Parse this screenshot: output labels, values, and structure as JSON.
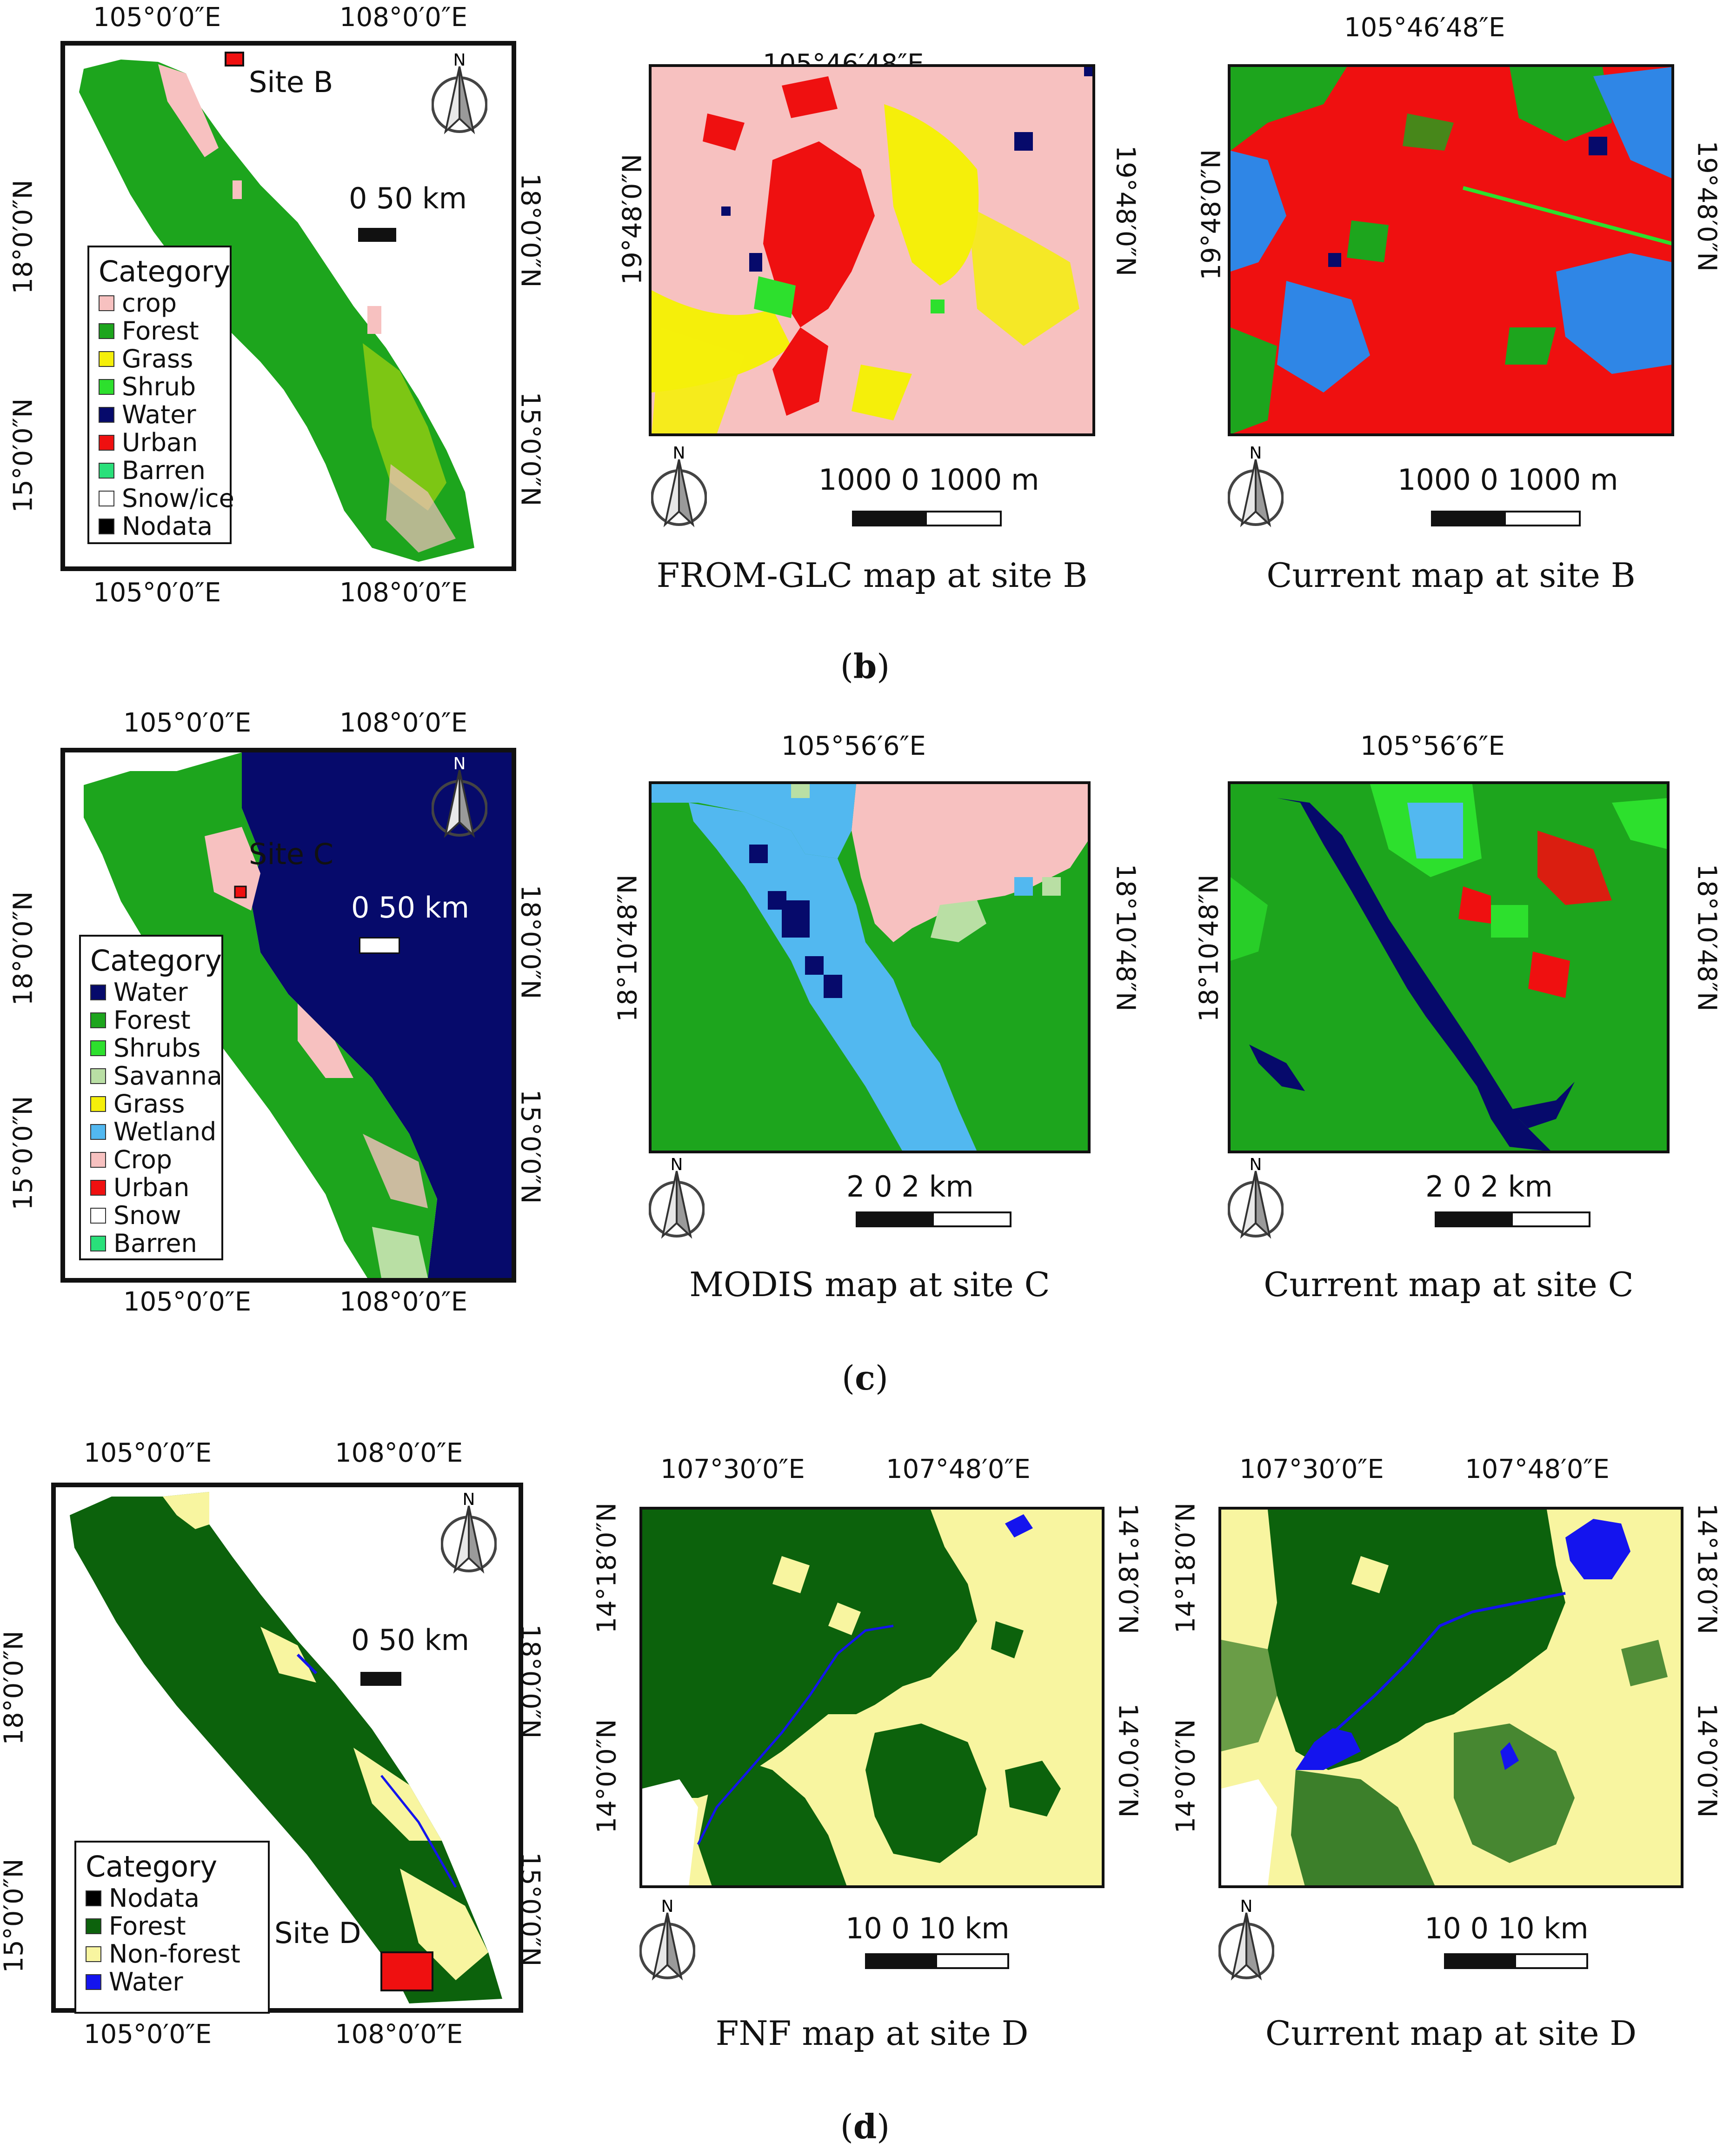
{
  "colors": {
    "crop": "#f7c1c0",
    "forest": "#1da51d",
    "grass": "#f5ef0a",
    "shrub": "#2de02d",
    "water": "#060a6b",
    "urban": "#ef1010",
    "barren": "#29e07a",
    "snow": "#ffffff",
    "nodata": "#000000",
    "savanna": "#b9dfa4",
    "wetland": "#52b8f0",
    "darkforest": "#0c620c",
    "nonforest": "#f8f5a0",
    "fnfwater": "#1414ee",
    "cyanwater": "#2f86e6"
  },
  "north_label": "N",
  "row_b": {
    "overview": {
      "top_lon": [
        "105°0′0″E",
        "108°0′0″E"
      ],
      "bottom_lon": [
        "105°0′0″E",
        "108°0′0″E"
      ],
      "left_lat": [
        "18°0′0″N",
        "15°0′0″N"
      ],
      "right_lat": [
        "18°0′0″N",
        "15°0′0″N"
      ],
      "site_label": "Site B",
      "scale_label": "0 50 km",
      "legend_title": "Category",
      "legend": [
        {
          "label": "crop",
          "color": "#f7c1c0"
        },
        {
          "label": "Forest",
          "color": "#1da51d"
        },
        {
          "label": "Grass",
          "color": "#f5ef0a"
        },
        {
          "label": "Shrub",
          "color": "#2de02d"
        },
        {
          "label": "Water",
          "color": "#060a6b"
        },
        {
          "label": "Urban",
          "color": "#ef1010"
        },
        {
          "label": "Barren",
          "color": "#29e07a"
        },
        {
          "label": "Snow/ice",
          "color": "#ffffff"
        },
        {
          "label": "Nodata",
          "color": "#000000"
        }
      ]
    },
    "map1": {
      "top_lon": "105°46′48″E",
      "left_lat": "19°48′0″N",
      "right_lat": "19°48′0″N",
      "scale_text": "1000   0   1000 m",
      "caption": "FROM-GLC map at site B"
    },
    "map2": {
      "top_lon": "105°46′48″E",
      "left_lat": "19°48′0″N",
      "right_lat": "19°48′0″N",
      "scale_text": "1000   0   1000 m",
      "caption": "Current map at site B"
    },
    "panel_letter": "b"
  },
  "row_c": {
    "overview": {
      "top_lon": [
        "105°0′0″E",
        "108°0′0″E"
      ],
      "bottom_lon": [
        "105°0′0″E",
        "108°0′0″E"
      ],
      "left_lat": [
        "18°0′0″N",
        "15°0′0″N"
      ],
      "right_lat": [
        "18°0′0″N",
        "15°0′0″N"
      ],
      "site_label": "Site C",
      "scale_label": "0 50 km",
      "legend_title": "Category",
      "legend": [
        {
          "label": "Water",
          "color": "#060a6b"
        },
        {
          "label": "Forest",
          "color": "#1da51d"
        },
        {
          "label": "Shrubs",
          "color": "#2de02d"
        },
        {
          "label": "Savanna",
          "color": "#b9dfa4"
        },
        {
          "label": "Grass",
          "color": "#f5ef0a"
        },
        {
          "label": "Wetland",
          "color": "#52b8f0"
        },
        {
          "label": "Crop",
          "color": "#f7c1c0"
        },
        {
          "label": "Urban",
          "color": "#ef1010"
        },
        {
          "label": "Snow",
          "color": "#ffffff"
        },
        {
          "label": "Barren",
          "color": "#29e07a"
        }
      ]
    },
    "map1": {
      "top_lon": "105°56′6″E",
      "left_lat": "18°10′48″N",
      "right_lat": "18°10′48″N",
      "scale_text": "2      0      2 km",
      "caption": "MODIS map at site C"
    },
    "map2": {
      "top_lon": "105°56′6″E",
      "left_lat": "18°10′48″N",
      "right_lat": "18°10′48″N",
      "scale_text": "2      0      2 km",
      "caption": "Current map at site C"
    },
    "panel_letter": "c"
  },
  "row_d": {
    "overview": {
      "top_lon": [
        "105°0′0″E",
        "108°0′0″E"
      ],
      "bottom_lon": [
        "105°0′0″E",
        "108°0′0″E"
      ],
      "left_lat": [
        "18°0′0″N",
        "15°0′0″N"
      ],
      "right_lat": [
        "18°0′0″N",
        "15°0′0″N"
      ],
      "site_label": "Site D",
      "scale_label": "0 50 km",
      "legend_title": "Category",
      "legend": [
        {
          "label": "Nodata",
          "color": "#000000"
        },
        {
          "label": "Forest",
          "color": "#0c620c"
        },
        {
          "label": "Non-forest",
          "color": "#f8f5a0"
        },
        {
          "label": "Water",
          "color": "#1414ee"
        }
      ]
    },
    "map1": {
      "top_lon": [
        "107°30′0″E",
        "107°48′0″E"
      ],
      "left_lat": [
        "14°18′0″N",
        "14°0′0″N"
      ],
      "right_lat": [
        "14°18′0″N",
        "14°0′0″N"
      ],
      "scale_text": "10      0     10 km",
      "caption": "FNF map at site D"
    },
    "map2": {
      "top_lon": [
        "107°30′0″E",
        "107°48′0″E"
      ],
      "left_lat": [
        "14°18′0″N",
        "14°0′0″N"
      ],
      "right_lat": [
        "14°18′0″N",
        "14°0′0″N"
      ],
      "scale_text": "10      0     10 km",
      "caption": "Current map at site D"
    },
    "panel_letter": "d"
  }
}
